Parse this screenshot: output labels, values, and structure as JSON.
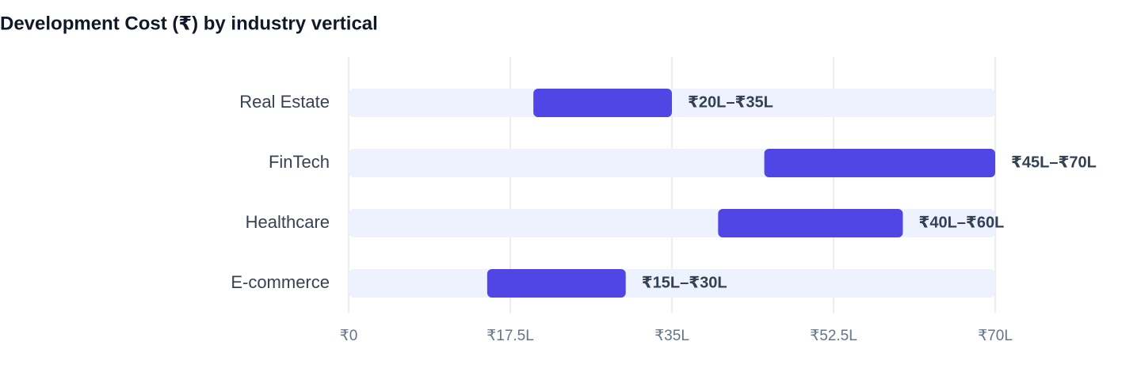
{
  "chart_data": {
    "type": "range-bar",
    "title": "Development Cost (₹) by industry vertical",
    "categories": [
      "Real Estate",
      "FinTech",
      "Healthcare",
      "E-commerce"
    ],
    "values": [
      [
        20,
        35
      ],
      [
        45,
        70
      ],
      [
        40,
        60
      ],
      [
        15,
        30
      ]
    ],
    "value_labels": [
      "₹20L–₹35L",
      "₹45L–₹70L",
      "₹40L–₹60L",
      "₹15L–₹30L"
    ],
    "color": "#4f46e5",
    "track_color": "#eef2ff",
    "xlim": [
      0,
      70
    ],
    "xticks": [
      {
        "value": 0,
        "label": "₹0"
      },
      {
        "value": 17.5,
        "label": "₹17.5L"
      },
      {
        "value": 35,
        "label": "₹35L"
      },
      {
        "value": 52.5,
        "label": "₹52.5L"
      },
      {
        "value": 70,
        "label": "₹70L"
      }
    ],
    "grid": true
  }
}
